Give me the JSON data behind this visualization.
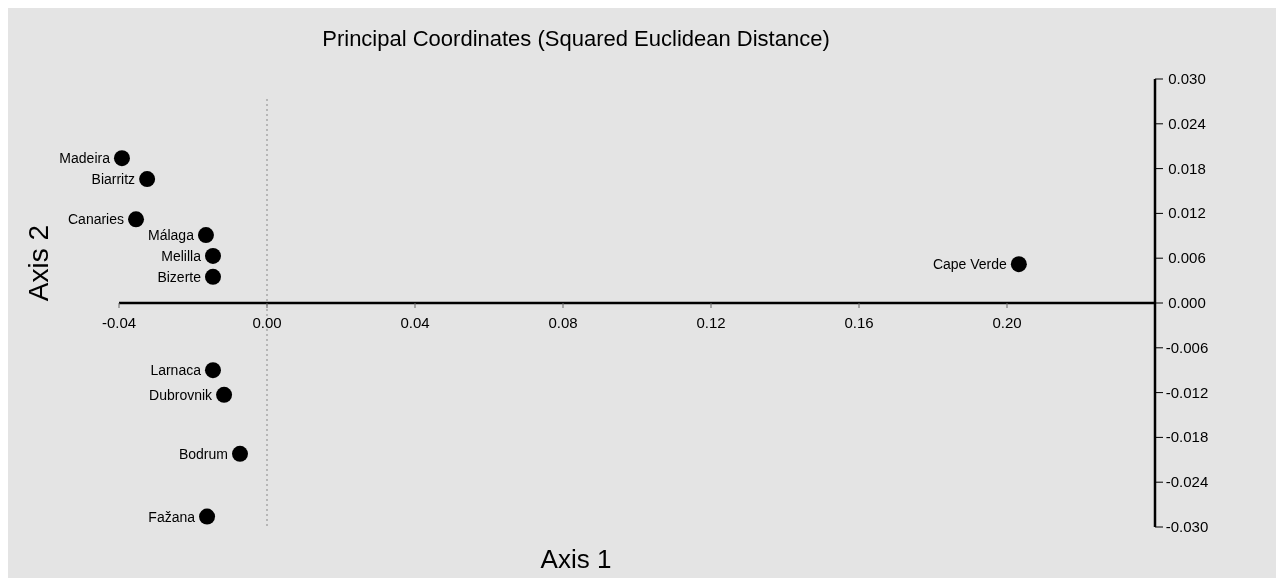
{
  "chart_data": {
    "type": "scatter",
    "title": "Principal Coordinates (Squared Euclidean Distance)",
    "xlabel": "Axis 1",
    "ylabel": "Axis 2",
    "x": [
      -0.0392,
      -0.0324,
      -0.0354,
      -0.0165,
      -0.0146,
      -0.0146,
      0.2032,
      -0.0146,
      -0.0116,
      -0.0073,
      -0.0162
    ],
    "series": [
      {
        "color": "#000000",
        "values": [
          0.0194,
          0.0166,
          0.0112,
          0.0091,
          0.0063,
          0.0035,
          0.0052,
          -0.009,
          -0.0123,
          -0.0202,
          -0.0286
        ]
      }
    ],
    "marker": "circle",
    "xlim": [
      -0.04,
      0.24
    ],
    "xticks": [
      {
        "value": -0.04,
        "label": "-0.04"
      },
      {
        "value": 0,
        "label": "0.00"
      },
      {
        "value": 0.04,
        "label": "0.04"
      },
      {
        "value": 0.08,
        "label": "0.08"
      },
      {
        "value": 0.12,
        "label": "0.12"
      },
      {
        "value": 0.16,
        "label": "0.16"
      },
      {
        "value": 0.2,
        "label": "0.20"
      }
    ],
    "ylim": [
      -0.03,
      0.03
    ],
    "yticks": [
      {
        "value": 0.03,
        "label": "0.030"
      },
      {
        "value": 0.024,
        "label": "0.024"
      },
      {
        "value": 0.018,
        "label": "0.018"
      },
      {
        "value": 0.012,
        "label": "0.012"
      },
      {
        "value": 0.006,
        "label": "0.006"
      },
      {
        "value": 0,
        "label": "0.000"
      },
      {
        "value": -0.006,
        "label": "-0.006"
      },
      {
        "value": -0.012,
        "label": "-0.012"
      },
      {
        "value": -0.018,
        "label": "-0.018"
      },
      {
        "value": -0.024,
        "label": "-0.024"
      },
      {
        "value": -0.03,
        "label": "-0.030"
      }
    ],
    "ref_lines": [
      {
        "axis": "x",
        "value": 0,
        "line_style": "dotted",
        "color": "#888888"
      }
    ],
    "annotations": [
      {
        "text": "Madeira",
        "x": -0.0392,
        "y": 0.0194
      },
      {
        "text": "Biarritz",
        "x": -0.0324,
        "y": 0.0166
      },
      {
        "text": "Canaries",
        "x": -0.0354,
        "y": 0.0112
      },
      {
        "text": "Málaga",
        "x": -0.0165,
        "y": 0.0091
      },
      {
        "text": "Melilla",
        "x": -0.0146,
        "y": 0.0063
      },
      {
        "text": "Bizerte",
        "x": -0.0146,
        "y": 0.0035
      },
      {
        "text": "Cape Verde",
        "x": 0.2032,
        "y": 0.0052
      },
      {
        "text": "Larnaca",
        "x": -0.0146,
        "y": -0.009
      },
      {
        "text": "Dubrovnik",
        "x": -0.0116,
        "y": -0.0123
      },
      {
        "text": "Bodrum",
        "x": -0.0073,
        "y": -0.0202
      },
      {
        "text": "Fažana",
        "x": -0.0162,
        "y": -0.0286
      }
    ]
  }
}
